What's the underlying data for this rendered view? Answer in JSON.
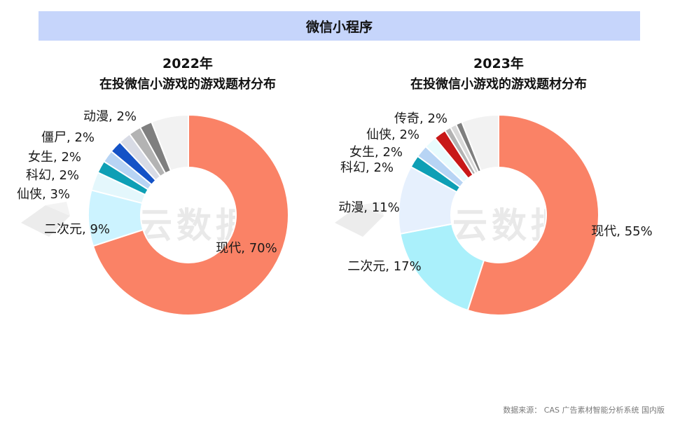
{
  "header": {
    "title": "微信小程序"
  },
  "charts": [
    {
      "year": "2022年",
      "subtitle": "在投微信小游戏的游戏题材分布"
    },
    {
      "year": "2023年",
      "subtitle": "在投微信小游戏的游戏题材分布"
    }
  ],
  "watermark": "热云数据",
  "source": "数据来源： CAS 广告素材智能分析系统 国内版",
  "chart_data": [
    {
      "type": "pie",
      "title": "2022年 在投微信小游戏的游戏题材分布",
      "slices": [
        {
          "label": "现代",
          "value": 70,
          "text": "现代, 70%",
          "color": "#fa8266"
        },
        {
          "label": "二次元",
          "value": 9,
          "text": "二次元, 9%",
          "color": "#ccf3ff"
        },
        {
          "label": "仙侠",
          "value": 3,
          "text": "仙侠, 3%",
          "color": "#e4f7fc"
        },
        {
          "label": "科幻",
          "value": 2,
          "text": "科幻, 2%",
          "color": "#0e9fb5"
        },
        {
          "label": "女生",
          "value": 2,
          "text": "女生, 2%",
          "color": "#b7d4f4"
        },
        {
          "label": "僵尸",
          "value": 2,
          "text": "僵尸, 2%",
          "color": "#1452c6"
        },
        {
          "label": "动漫",
          "value": 2,
          "text": "动漫, 2%",
          "color": "#d8dbe5"
        },
        {
          "label": "",
          "value": 2,
          "text": "",
          "color": "#b3b3b3"
        },
        {
          "label": "",
          "value": 2,
          "text": "",
          "color": "#7f7f7f"
        },
        {
          "label": "",
          "value": 6,
          "text": "",
          "color": "#f2f2f2"
        }
      ]
    },
    {
      "type": "pie",
      "title": "2023年 在投微信小游戏的游戏题材分布",
      "slices": [
        {
          "label": "现代",
          "value": 55,
          "text": "现代, 55%",
          "color": "#fa8266"
        },
        {
          "label": "二次元",
          "value": 17,
          "text": "二次元, 17%",
          "color": "#aaf0fb"
        },
        {
          "label": "动漫",
          "value": 11,
          "text": "动漫, 11%",
          "color": "#e6f0fd"
        },
        {
          "label": "科幻",
          "value": 2,
          "text": "科幻, 2%",
          "color": "#0e9fb5"
        },
        {
          "label": "女生",
          "value": 2,
          "text": "女生, 2%",
          "color": "#b7d4f4"
        },
        {
          "label": "仙侠",
          "value": 2,
          "text": "仙侠, 2%",
          "color": "#e8fbfd"
        },
        {
          "label": "传奇",
          "value": 2,
          "text": "传奇, 2%",
          "color": "#c81818"
        },
        {
          "label": "",
          "value": 1,
          "text": "",
          "color": "#b3b3b3"
        },
        {
          "label": "",
          "value": 1,
          "text": "",
          "color": "#d9d9d9"
        },
        {
          "label": "",
          "value": 1,
          "text": "",
          "color": "#7f7f7f"
        },
        {
          "label": "",
          "value": 6,
          "text": "",
          "color": "#f2f2f2"
        }
      ]
    }
  ]
}
